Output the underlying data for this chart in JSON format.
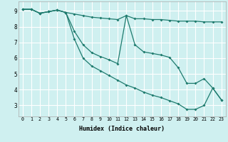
{
  "xlabel": "Humidex (Indice chaleur)",
  "bg_color": "#cff0f0",
  "line_color": "#1e7b6e",
  "grid_color": "#ffffff",
  "xlim": [
    -0.5,
    23.5
  ],
  "ylim": [
    2.3,
    9.6
  ],
  "xticks": [
    0,
    1,
    2,
    3,
    4,
    5,
    6,
    7,
    8,
    9,
    10,
    11,
    12,
    13,
    14,
    15,
    16,
    17,
    18,
    19,
    20,
    21,
    22,
    23
  ],
  "yticks": [
    3,
    4,
    5,
    6,
    7,
    8,
    9
  ],
  "line1_x": [
    0,
    1,
    2,
    3,
    4,
    5,
    6,
    7,
    8,
    9,
    10,
    11,
    12,
    13,
    14,
    15,
    16,
    17,
    18,
    19,
    20,
    21,
    22,
    23
  ],
  "line1_y": [
    9.1,
    9.1,
    8.85,
    8.95,
    9.05,
    8.9,
    8.8,
    8.7,
    8.6,
    8.55,
    8.5,
    8.45,
    8.7,
    8.5,
    8.5,
    8.45,
    8.45,
    8.4,
    8.35,
    8.35,
    8.35,
    8.3,
    8.3,
    8.3
  ],
  "line2_x": [
    0,
    1,
    2,
    3,
    4,
    5,
    6,
    7,
    8,
    9,
    10,
    11,
    12,
    13,
    14,
    15,
    16,
    17,
    18,
    19,
    20,
    21,
    22,
    23
  ],
  "line2_y": [
    9.1,
    9.1,
    8.85,
    8.95,
    9.05,
    8.9,
    7.7,
    6.85,
    6.35,
    6.1,
    5.9,
    5.65,
    8.7,
    6.85,
    6.4,
    6.3,
    6.2,
    6.05,
    5.4,
    4.4,
    4.4,
    4.7,
    4.1,
    3.35
  ],
  "line3_x": [
    0,
    1,
    2,
    3,
    4,
    5,
    6,
    7,
    8,
    9,
    10,
    11,
    12,
    13,
    14,
    15,
    16,
    17,
    18,
    19,
    20,
    21,
    22,
    23
  ],
  "line3_y": [
    9.1,
    9.1,
    8.85,
    8.95,
    9.05,
    8.9,
    7.2,
    6.0,
    5.5,
    5.2,
    4.9,
    4.6,
    4.3,
    4.1,
    3.85,
    3.65,
    3.5,
    3.3,
    3.1,
    2.75,
    2.75,
    3.0,
    4.1,
    3.35
  ]
}
